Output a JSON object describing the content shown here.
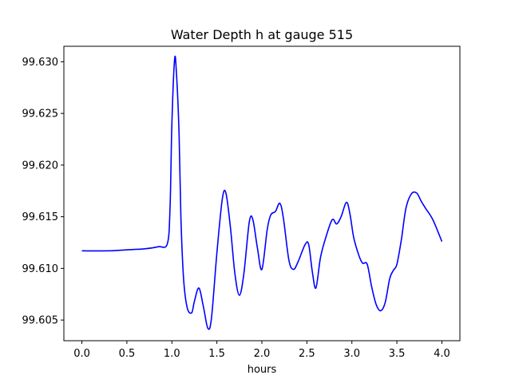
{
  "chart_data": {
    "type": "line",
    "title": "Water Depth h at gauge 515",
    "xlabel": "hours",
    "ylabel": "",
    "xlim": [
      -0.2,
      4.2
    ],
    "ylim": [
      99.603,
      99.6315
    ],
    "x_ticks": [
      0.0,
      0.5,
      1.0,
      1.5,
      2.0,
      2.5,
      3.0,
      3.5,
      4.0
    ],
    "x_tick_labels": [
      "0.0",
      "0.5",
      "1.0",
      "1.5",
      "2.0",
      "2.5",
      "3.0",
      "3.5",
      "4.0"
    ],
    "y_ticks": [
      99.605,
      99.61,
      99.615,
      99.62,
      99.625,
      99.63
    ],
    "y_tick_labels": [
      "99.605",
      "99.610",
      "99.615",
      "99.620",
      "99.625",
      "99.630"
    ],
    "grid": false,
    "legend": "none",
    "series": [
      {
        "color": "#0000ff",
        "x": [
          0.0,
          0.3,
          0.5,
          0.7,
          0.85,
          0.95,
          0.98,
          1.0,
          1.03,
          1.05,
          1.08,
          1.1,
          1.13,
          1.17,
          1.22,
          1.25,
          1.3,
          1.35,
          1.4,
          1.44,
          1.5,
          1.56,
          1.6,
          1.65,
          1.7,
          1.75,
          1.8,
          1.86,
          1.9,
          1.95,
          2.0,
          2.06,
          2.1,
          2.15,
          2.2,
          2.24,
          2.3,
          2.35,
          2.4,
          2.48,
          2.52,
          2.56,
          2.6,
          2.65,
          2.7,
          2.78,
          2.83,
          2.88,
          2.94,
          2.98,
          3.02,
          3.08,
          3.12,
          3.17,
          3.22,
          3.27,
          3.32,
          3.37,
          3.42,
          3.46,
          3.5,
          3.55,
          3.6,
          3.66,
          3.72,
          3.77,
          3.82,
          3.9,
          4.0
        ],
        "y": [
          99.6117,
          99.6117,
          99.6118,
          99.6119,
          99.6121,
          99.6124,
          99.616,
          99.624,
          99.6302,
          99.629,
          99.623,
          99.615,
          99.609,
          99.6062,
          99.6057,
          99.6068,
          99.6081,
          99.6063,
          99.6042,
          99.6052,
          99.6115,
          99.6167,
          99.6173,
          99.614,
          99.6095,
          99.6074,
          99.6095,
          99.6145,
          99.6147,
          99.612,
          99.6099,
          99.6138,
          99.6152,
          99.6155,
          99.6163,
          99.6148,
          99.6108,
          99.6099,
          99.6106,
          99.6123,
          99.6123,
          99.6097,
          99.6081,
          99.611,
          99.6127,
          99.6147,
          99.6143,
          99.615,
          99.6164,
          99.6152,
          99.613,
          99.6112,
          99.6105,
          99.6104,
          99.6082,
          99.6065,
          99.6059,
          99.6067,
          99.609,
          99.6098,
          99.6104,
          99.6128,
          99.6158,
          99.6172,
          99.6173,
          99.6165,
          99.6158,
          99.6147,
          99.6126
        ]
      }
    ]
  }
}
